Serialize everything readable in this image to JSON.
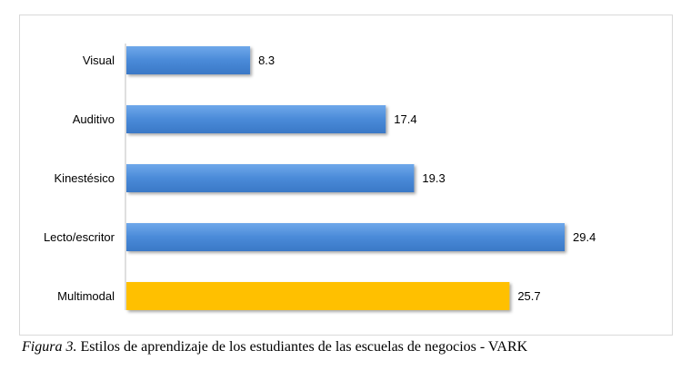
{
  "chart_data": {
    "type": "bar",
    "orientation": "horizontal",
    "categories": [
      "Visual",
      "Auditivo",
      "Kinestésico",
      "Lecto/escritor",
      "Multimodal"
    ],
    "values": [
      8.3,
      17.4,
      19.3,
      29.4,
      25.7
    ],
    "value_labels": [
      "8.3",
      "17.4",
      "19.3",
      "29.4",
      "25.7"
    ],
    "bar_colors": [
      "#4a8ad8",
      "#4a8ad8",
      "#4a8ad8",
      "#4a8ad8",
      "#ffc000"
    ],
    "xlim": [
      0,
      30
    ],
    "grid": false,
    "legend": "none"
  },
  "caption": {
    "figure_label": "Figura 3.",
    "text": " Estilos de aprendizaje de los estudiantes de las escuelas de negocios - VARK"
  }
}
